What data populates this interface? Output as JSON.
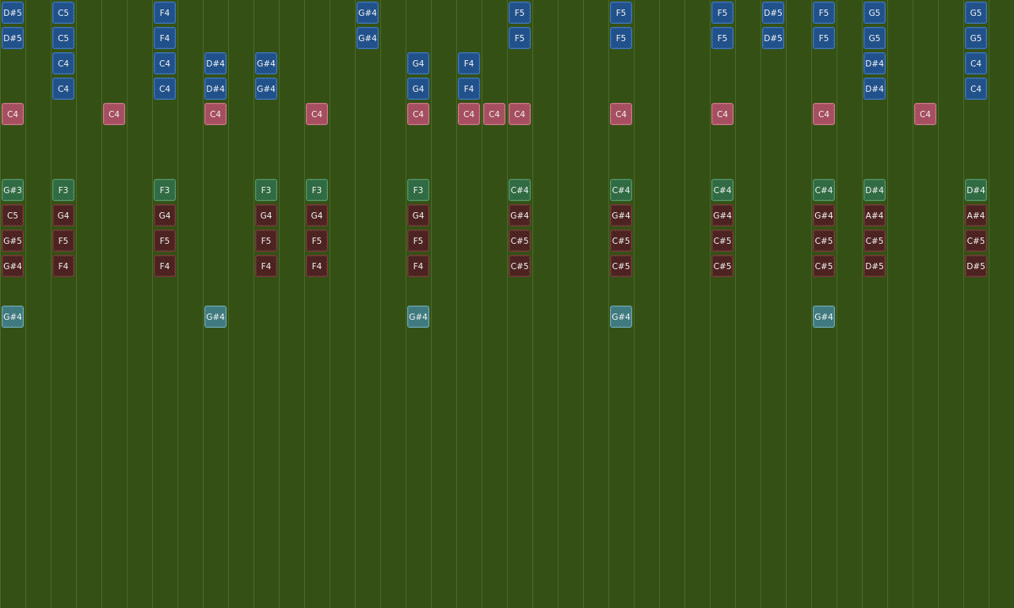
{
  "theme": {
    "background": "#355015",
    "gridline": "#4a6a2a",
    "tracks": {
      "lead": {
        "fill": "#1c4f8c",
        "border": "#3b78c0"
      },
      "snare": {
        "fill": "#a84c5e",
        "border": "#d07888"
      },
      "bass": {
        "fill": "#2c6a40",
        "border": "#4f9a66"
      },
      "chord": {
        "fill": "#4a1e1c",
        "border": "#7a3c36"
      },
      "accent": {
        "fill": "#3c7a80",
        "border": "#6aaab0"
      }
    }
  },
  "rows": [
    {
      "track": "lead",
      "notes": [
        {
          "col": 0,
          "label": "D#5"
        },
        {
          "col": 2,
          "label": "C5"
        },
        {
          "col": 6,
          "label": "F4"
        },
        {
          "col": 14,
          "label": "G#4"
        },
        {
          "col": 20,
          "label": "F5"
        },
        {
          "col": 24,
          "label": "F5"
        },
        {
          "col": 28,
          "label": "F5"
        },
        {
          "col": 30,
          "label": "D#5"
        },
        {
          "col": 32,
          "label": "F5"
        },
        {
          "col": 34,
          "label": "G5"
        },
        {
          "col": 38,
          "label": "G5"
        }
      ]
    },
    {
      "track": "lead",
      "notes": [
        {
          "col": 0,
          "label": "D#5"
        },
        {
          "col": 2,
          "label": "C5"
        },
        {
          "col": 6,
          "label": "F4"
        },
        {
          "col": 14,
          "label": "G#4"
        },
        {
          "col": 20,
          "label": "F5"
        },
        {
          "col": 24,
          "label": "F5"
        },
        {
          "col": 28,
          "label": "F5"
        },
        {
          "col": 30,
          "label": "D#5"
        },
        {
          "col": 32,
          "label": "F5"
        },
        {
          "col": 34,
          "label": "G5"
        },
        {
          "col": 38,
          "label": "G5"
        }
      ]
    },
    {
      "track": "lead",
      "notes": [
        {
          "col": 2,
          "label": "C4"
        },
        {
          "col": 6,
          "label": "C4"
        },
        {
          "col": 8,
          "label": "D#4"
        },
        {
          "col": 10,
          "label": "G#4"
        },
        {
          "col": 16,
          "label": "G4"
        },
        {
          "col": 18,
          "label": "F4"
        },
        {
          "col": 34,
          "label": "D#4"
        },
        {
          "col": 38,
          "label": "C4"
        }
      ]
    },
    {
      "track": "lead",
      "notes": [
        {
          "col": 2,
          "label": "C4"
        },
        {
          "col": 6,
          "label": "C4"
        },
        {
          "col": 8,
          "label": "D#4"
        },
        {
          "col": 10,
          "label": "G#4"
        },
        {
          "col": 16,
          "label": "G4"
        },
        {
          "col": 18,
          "label": "F4"
        },
        {
          "col": 34,
          "label": "D#4"
        },
        {
          "col": 38,
          "label": "C4"
        }
      ]
    },
    {
      "track": "snare",
      "notes": [
        {
          "col": 0,
          "label": "C4"
        },
        {
          "col": 4,
          "label": "C4"
        },
        {
          "col": 8,
          "label": "C4"
        },
        {
          "col": 12,
          "label": "C4"
        },
        {
          "col": 16,
          "label": "C4"
        },
        {
          "col": 18,
          "label": "C4"
        },
        {
          "col": 19,
          "label": "C4"
        },
        {
          "col": 20,
          "label": "C4"
        },
        {
          "col": 24,
          "label": "C4"
        },
        {
          "col": 28,
          "label": "C4"
        },
        {
          "col": 32,
          "label": "C4"
        },
        {
          "col": 36,
          "label": "C4"
        }
      ]
    },
    {
      "track": "lead",
      "notes": []
    },
    {
      "track": "lead",
      "notes": []
    },
    {
      "track": "bass",
      "notes": [
        {
          "col": 0,
          "label": "G#3"
        },
        {
          "col": 2,
          "label": "F3"
        },
        {
          "col": 6,
          "label": "F3"
        },
        {
          "col": 10,
          "label": "F3"
        },
        {
          "col": 12,
          "label": "F3"
        },
        {
          "col": 16,
          "label": "F3"
        },
        {
          "col": 20,
          "label": "C#4"
        },
        {
          "col": 24,
          "label": "C#4"
        },
        {
          "col": 28,
          "label": "C#4"
        },
        {
          "col": 32,
          "label": "C#4"
        },
        {
          "col": 34,
          "label": "D#4"
        },
        {
          "col": 38,
          "label": "D#4"
        }
      ]
    },
    {
      "track": "chord",
      "notes": [
        {
          "col": 0,
          "label": "C5"
        },
        {
          "col": 2,
          "label": "G4"
        },
        {
          "col": 6,
          "label": "G4"
        },
        {
          "col": 10,
          "label": "G4"
        },
        {
          "col": 12,
          "label": "G4"
        },
        {
          "col": 16,
          "label": "G4"
        },
        {
          "col": 20,
          "label": "G#4"
        },
        {
          "col": 24,
          "label": "G#4"
        },
        {
          "col": 28,
          "label": "G#4"
        },
        {
          "col": 32,
          "label": "G#4"
        },
        {
          "col": 34,
          "label": "A#4"
        },
        {
          "col": 38,
          "label": "A#4"
        }
      ]
    },
    {
      "track": "chord",
      "notes": [
        {
          "col": 0,
          "label": "G#5"
        },
        {
          "col": 2,
          "label": "F5"
        },
        {
          "col": 6,
          "label": "F5"
        },
        {
          "col": 10,
          "label": "F5"
        },
        {
          "col": 12,
          "label": "F5"
        },
        {
          "col": 16,
          "label": "F5"
        },
        {
          "col": 20,
          "label": "C#5"
        },
        {
          "col": 24,
          "label": "C#5"
        },
        {
          "col": 28,
          "label": "C#5"
        },
        {
          "col": 32,
          "label": "C#5"
        },
        {
          "col": 34,
          "label": "C#5"
        },
        {
          "col": 38,
          "label": "C#5"
        }
      ]
    },
    {
      "track": "chord",
      "notes": [
        {
          "col": 0,
          "label": "G#4"
        },
        {
          "col": 2,
          "label": "F4"
        },
        {
          "col": 6,
          "label": "F4"
        },
        {
          "col": 10,
          "label": "F4"
        },
        {
          "col": 12,
          "label": "F4"
        },
        {
          "col": 16,
          "label": "F4"
        },
        {
          "col": 20,
          "label": "C#5"
        },
        {
          "col": 24,
          "label": "C#5"
        },
        {
          "col": 28,
          "label": "C#5"
        },
        {
          "col": 32,
          "label": "C#5"
        },
        {
          "col": 34,
          "label": "D#5"
        },
        {
          "col": 38,
          "label": "D#5"
        }
      ]
    },
    {
      "track": "lead",
      "notes": []
    },
    {
      "track": "accent",
      "notes": [
        {
          "col": 0,
          "label": "G#4"
        },
        {
          "col": 8,
          "label": "G#4"
        },
        {
          "col": 16,
          "label": "G#4"
        },
        {
          "col": 24,
          "label": "G#4"
        },
        {
          "col": 32,
          "label": "G#4"
        }
      ]
    }
  ]
}
